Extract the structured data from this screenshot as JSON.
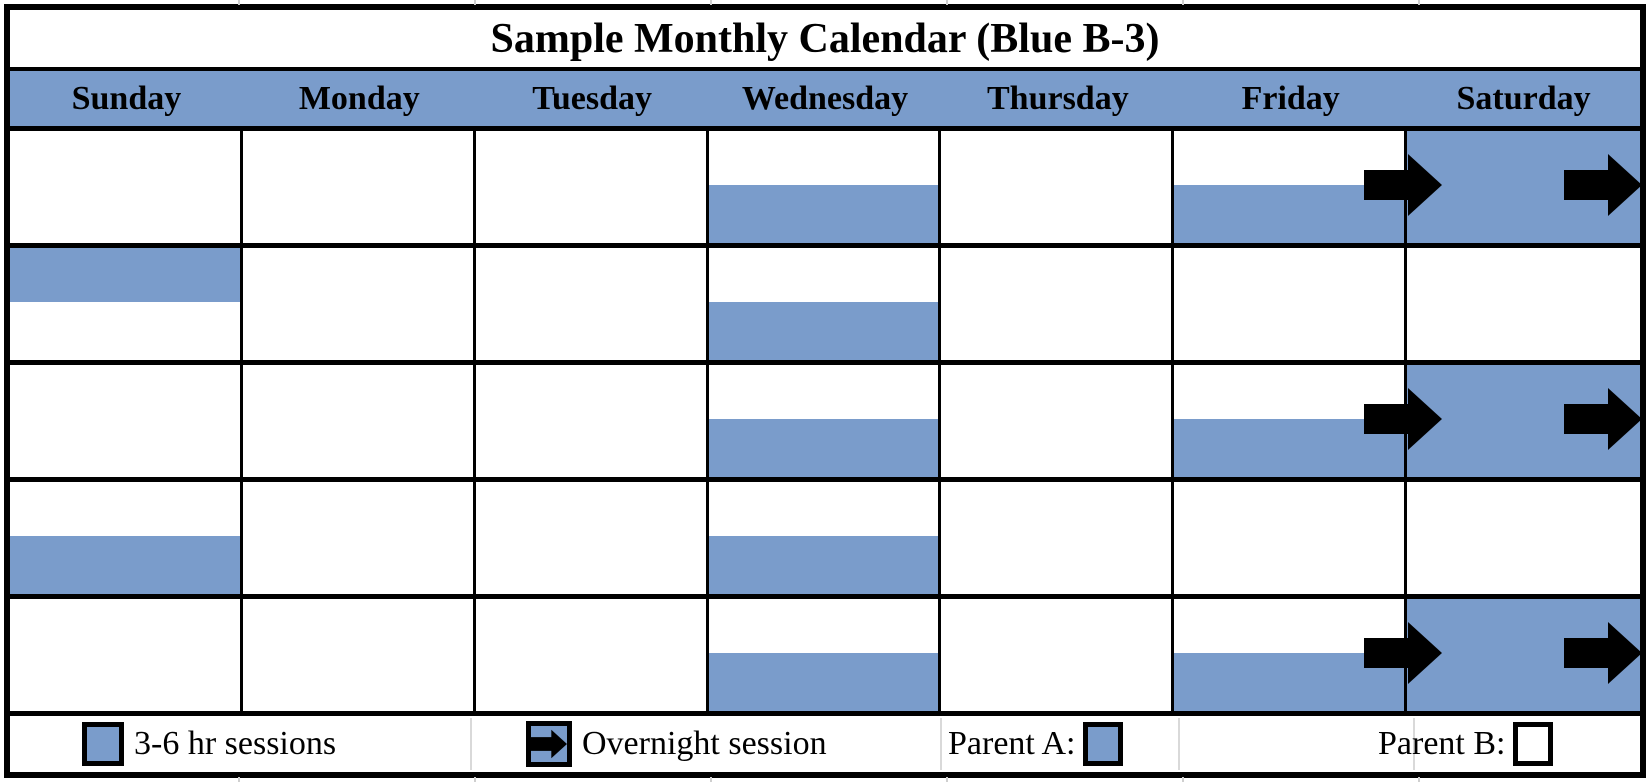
{
  "title": "Sample Monthly Calendar (Blue B-3)",
  "colors": {
    "session_blue": "#7A9CCB",
    "border_black": "#000000",
    "faint_grid": "#D9D9D9"
  },
  "days": [
    "Sunday",
    "Monday",
    "Tuesday",
    "Wednesday",
    "Thursday",
    "Friday",
    "Saturday"
  ],
  "weeks": [
    [
      {
        "day": "Sunday",
        "fill": "none",
        "arrow": false
      },
      {
        "day": "Monday",
        "fill": "none",
        "arrow": false
      },
      {
        "day": "Tuesday",
        "fill": "none",
        "arrow": false
      },
      {
        "day": "Wednesday",
        "fill": "bottom",
        "arrow": false
      },
      {
        "day": "Thursday",
        "fill": "none",
        "arrow": false
      },
      {
        "day": "Friday",
        "fill": "bottom",
        "arrow": true
      },
      {
        "day": "Saturday",
        "fill": "full",
        "arrow": true
      }
    ],
    [
      {
        "day": "Sunday",
        "fill": "top",
        "arrow": false
      },
      {
        "day": "Monday",
        "fill": "none",
        "arrow": false
      },
      {
        "day": "Tuesday",
        "fill": "none",
        "arrow": false
      },
      {
        "day": "Wednesday",
        "fill": "bottom",
        "arrow": false
      },
      {
        "day": "Thursday",
        "fill": "none",
        "arrow": false
      },
      {
        "day": "Friday",
        "fill": "none",
        "arrow": false
      },
      {
        "day": "Saturday",
        "fill": "none",
        "arrow": false
      }
    ],
    [
      {
        "day": "Sunday",
        "fill": "none",
        "arrow": false
      },
      {
        "day": "Monday",
        "fill": "none",
        "arrow": false
      },
      {
        "day": "Tuesday",
        "fill": "none",
        "arrow": false
      },
      {
        "day": "Wednesday",
        "fill": "bottom",
        "arrow": false
      },
      {
        "day": "Thursday",
        "fill": "none",
        "arrow": false
      },
      {
        "day": "Friday",
        "fill": "bottom",
        "arrow": true
      },
      {
        "day": "Saturday",
        "fill": "full",
        "arrow": true
      }
    ],
    [
      {
        "day": "Sunday",
        "fill": "bottom",
        "arrow": false
      },
      {
        "day": "Monday",
        "fill": "none",
        "arrow": false
      },
      {
        "day": "Tuesday",
        "fill": "none",
        "arrow": false
      },
      {
        "day": "Wednesday",
        "fill": "bottom",
        "arrow": false
      },
      {
        "day": "Thursday",
        "fill": "none",
        "arrow": false
      },
      {
        "day": "Friday",
        "fill": "none",
        "arrow": false
      },
      {
        "day": "Saturday",
        "fill": "none",
        "arrow": false
      }
    ],
    [
      {
        "day": "Sunday",
        "fill": "none",
        "arrow": false
      },
      {
        "day": "Monday",
        "fill": "none",
        "arrow": false
      },
      {
        "day": "Tuesday",
        "fill": "none",
        "arrow": false
      },
      {
        "day": "Wednesday",
        "fill": "bottom",
        "arrow": false
      },
      {
        "day": "Thursday",
        "fill": "none",
        "arrow": false
      },
      {
        "day": "Friday",
        "fill": "bottom",
        "arrow": true
      },
      {
        "day": "Saturday",
        "fill": "full",
        "arrow": true
      }
    ]
  ],
  "legend": {
    "session_label": "3-6 hr sessions",
    "overnight_label": "Overnight session",
    "parent_a_label": "Parent A:",
    "parent_b_label": "Parent B:"
  }
}
